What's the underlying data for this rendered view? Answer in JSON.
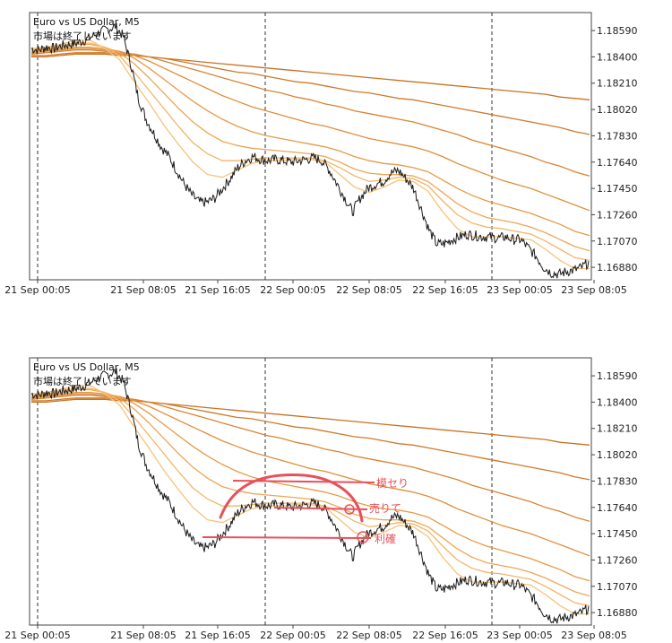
{
  "chart_data": [
    {
      "type": "line",
      "title": "Euro vs US Dollar, M5",
      "subtitle": "市場は終了しています",
      "x_ticks": [
        "21 Sep 00:05",
        "21 Sep 08:05",
        "21 Sep 16:05",
        "22 Sep 00:05",
        "22 Sep 08:05",
        "22 Sep 16:05",
        "23 Sep 00:05",
        "23 Sep 08:05"
      ],
      "y_ticks": [
        1.1859,
        1.184,
        1.1821,
        1.1802,
        1.1783,
        1.1764,
        1.1745,
        1.1726,
        1.1707,
        1.1688
      ],
      "ylim": [
        1.1679,
        1.1872
      ],
      "day_separators": [
        "21 Sep 00:05",
        "22 Sep 00:05",
        "23 Sep 00:05"
      ],
      "series": [
        {
          "color": "#1a1a1a",
          "values": [
            1.1846,
            1.1845,
            1.1847,
            1.1846,
            1.1848,
            1.1849,
            1.185,
            1.1852,
            1.1855,
            1.1858,
            1.186,
            1.1862,
            1.1855,
            1.1835,
            1.181,
            1.1795,
            1.1785,
            1.1775,
            1.1768,
            1.1758,
            1.1748,
            1.174,
            1.1735,
            1.1735,
            1.1738,
            1.1745,
            1.1752,
            1.176,
            1.1765,
            1.1768,
            1.1766,
            1.1765,
            1.1766,
            1.1765,
            1.1764,
            1.1765,
            1.1766,
            1.1767,
            1.1765,
            1.1758,
            1.1748,
            1.1738,
            1.1728,
            1.1738,
            1.1745,
            1.1748,
            1.175,
            1.1756,
            1.1758,
            1.1752,
            1.1745,
            1.173,
            1.1715,
            1.1705,
            1.1705,
            1.1708,
            1.171,
            1.1712,
            1.1711,
            1.171,
            1.171,
            1.1709,
            1.171,
            1.1708,
            1.1708,
            1.1702,
            1.1696,
            1.1688,
            1.1684,
            1.1683,
            1.1685,
            1.1686,
            1.1688,
            1.1692
          ]
        },
        {
          "color": "#f6c37b",
          "values": [
            1.1846,
            1.1847,
            1.1849,
            1.1852,
            1.1852,
            1.1846,
            1.1838,
            1.1822,
            1.1807,
            1.1791,
            1.1777,
            1.1764,
            1.1755,
            1.1753,
            1.1758,
            1.1763,
            1.1765,
            1.1765,
            1.1766,
            1.1766,
            1.1764,
            1.1755,
            1.1746,
            1.1742,
            1.1746,
            1.1751,
            1.175,
            1.1743,
            1.1728,
            1.1716,
            1.171,
            1.171,
            1.171,
            1.1709,
            1.1708,
            1.1701,
            1.1693,
            1.1687,
            1.1687
          ]
        },
        {
          "color": "#f2b567",
          "values": [
            1.1845,
            1.1846,
            1.1848,
            1.185,
            1.185,
            1.1847,
            1.1841,
            1.1829,
            1.1816,
            1.1803,
            1.179,
            1.1778,
            1.177,
            1.1765,
            1.1765,
            1.1766,
            1.1767,
            1.1767,
            1.1767,
            1.1767,
            1.1765,
            1.176,
            1.1754,
            1.175,
            1.1751,
            1.1753,
            1.1752,
            1.1747,
            1.1736,
            1.1726,
            1.172,
            1.1717,
            1.1716,
            1.1714,
            1.1712,
            1.1707,
            1.1701,
            1.1695,
            1.1693
          ]
        },
        {
          "color": "#eda653",
          "values": [
            1.1845,
            1.1845,
            1.1847,
            1.1849,
            1.1849,
            1.1847,
            1.1843,
            1.1835,
            1.1825,
            1.1814,
            1.1803,
            1.1793,
            1.1785,
            1.1779,
            1.1776,
            1.1774,
            1.1773,
            1.1772,
            1.1771,
            1.177,
            1.1768,
            1.1764,
            1.1759,
            1.1756,
            1.1755,
            1.1755,
            1.1754,
            1.175,
            1.1742,
            1.1734,
            1.1728,
            1.1724,
            1.1722,
            1.172,
            1.1717,
            1.1713,
            1.1708,
            1.1703,
            1.17
          ]
        },
        {
          "color": "#e69a45",
          "values": [
            1.1844,
            1.1845,
            1.1846,
            1.1847,
            1.1847,
            1.1846,
            1.1844,
            1.1839,
            1.1832,
            1.1824,
            1.1816,
            1.1808,
            1.1801,
            1.1795,
            1.179,
            1.1786,
            1.1783,
            1.1781,
            1.1779,
            1.1777,
            1.1775,
            1.1772,
            1.1768,
            1.1765,
            1.1763,
            1.1762,
            1.176,
            1.1757,
            1.1751,
            1.1745,
            1.174,
            1.1736,
            1.1733,
            1.173,
            1.1727,
            1.1723,
            1.1719,
            1.1714,
            1.1711
          ]
        },
        {
          "color": "#de8f3b",
          "values": [
            1.1843,
            1.1844,
            1.1845,
            1.1846,
            1.1846,
            1.1845,
            1.1844,
            1.1841,
            1.1837,
            1.1832,
            1.1827,
            1.1822,
            1.1817,
            1.1812,
            1.1808,
            1.1804,
            1.1801,
            1.1798,
            1.1795,
            1.1792,
            1.179,
            1.1787,
            1.1784,
            1.1781,
            1.1779,
            1.1777,
            1.1775,
            1.1772,
            1.1768,
            1.1763,
            1.1759,
            1.1755,
            1.1751,
            1.1748,
            1.1745,
            1.1741,
            1.1737,
            1.1733,
            1.1729
          ]
        },
        {
          "color": "#d88433",
          "values": [
            1.1842,
            1.1843,
            1.1844,
            1.1845,
            1.1845,
            1.1844,
            1.1843,
            1.1842,
            1.184,
            1.1837,
            1.1834,
            1.1831,
            1.1828,
            1.1825,
            1.1822,
            1.1819,
            1.1816,
            1.1814,
            1.1811,
            1.1809,
            1.1806,
            1.1804,
            1.1801,
            1.1799,
            1.1797,
            1.1795,
            1.1793,
            1.179,
            1.1787,
            1.1784,
            1.178,
            1.1777,
            1.1774,
            1.1771,
            1.1768,
            1.1764,
            1.1761,
            1.1757,
            1.1754
          ]
        },
        {
          "color": "#cf7a2a",
          "values": [
            1.1841,
            1.1841,
            1.1842,
            1.1843,
            1.1843,
            1.1843,
            1.1842,
            1.1841,
            1.184,
            1.1839,
            1.1837,
            1.1835,
            1.1833,
            1.1831,
            1.1829,
            1.1828,
            1.1826,
            1.1824,
            1.1822,
            1.1821,
            1.1819,
            1.1817,
            1.1815,
            1.1814,
            1.1812,
            1.181,
            1.1809,
            1.1807,
            1.1805,
            1.1803,
            1.1801,
            1.1799,
            1.1797,
            1.1795,
            1.1793,
            1.1791,
            1.1789,
            1.1786,
            1.1784
          ]
        },
        {
          "color": "#c97222",
          "values": [
            1.184,
            1.184,
            1.1841,
            1.1842,
            1.1842,
            1.1842,
            1.1841,
            1.1841,
            1.184,
            1.1839,
            1.1838,
            1.1837,
            1.1836,
            1.1835,
            1.1834,
            1.1833,
            1.1832,
            1.1831,
            1.183,
            1.1829,
            1.1828,
            1.1827,
            1.1826,
            1.1825,
            1.1824,
            1.1823,
            1.1822,
            1.1821,
            1.182,
            1.1819,
            1.1818,
            1.1817,
            1.1816,
            1.1815,
            1.1814,
            1.1813,
            1.1811,
            1.181,
            1.1809
          ]
        }
      ]
    },
    {
      "type": "line",
      "title": "Euro vs US Dollar, M5",
      "subtitle": "市場は終了しています",
      "annotations": [
        "模セり",
        "売りて",
        "利確"
      ],
      "annotation_color": "#e8505b"
    }
  ]
}
